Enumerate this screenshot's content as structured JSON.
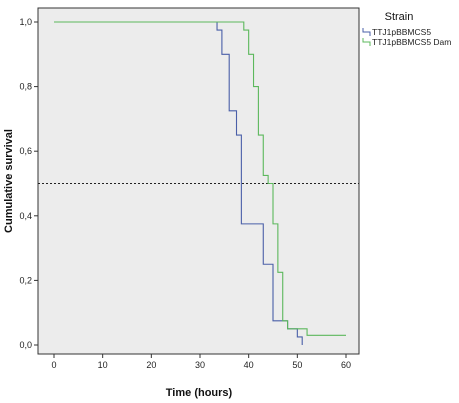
{
  "chart_data": {
    "type": "line",
    "step": true,
    "xlabel": "Time (hours)",
    "ylabel": "Cumulative survival",
    "xlim": [
      0,
      60
    ],
    "ylim": [
      0,
      1
    ],
    "x_ticks": [
      "0",
      "10",
      "20",
      "30",
      "40",
      "50",
      "60"
    ],
    "y_ticks": [
      "0,0",
      "0,2",
      "0,4",
      "0,6",
      "0,8",
      "1,0"
    ],
    "grid": false,
    "plot_background": "#ececec",
    "reference_line": {
      "y": 0.5,
      "style": "dotted"
    },
    "legend": {
      "title": "Strain",
      "placement": "right",
      "entries": [
        "TTJ1pBBMCS5",
        "TTJ1pBBMCS5 Dam"
      ]
    },
    "series": [
      {
        "name": "TTJ1pBBMCS5",
        "color": "#4a5fa8",
        "x": [
          0,
          33,
          33.5,
          34.5,
          36,
          37.5,
          38.5,
          42,
          43,
          45,
          48,
          50,
          51
        ],
        "y": [
          1.0,
          1.0,
          0.975,
          0.9,
          0.725,
          0.65,
          0.375,
          0.375,
          0.25,
          0.075,
          0.05,
          0.025,
          0.0
        ]
      },
      {
        "name": "TTJ1pBBMCS5 Dam",
        "color": "#5cb85c",
        "x": [
          0,
          37,
          39,
          40,
          41,
          42,
          43,
          44,
          45,
          46,
          47,
          48,
          51,
          52,
          60
        ],
        "y": [
          1.0,
          1.0,
          0.975,
          0.9,
          0.8,
          0.65,
          0.525,
          0.5,
          0.375,
          0.225,
          0.075,
          0.05,
          0.05,
          0.03,
          0.03
        ]
      }
    ]
  }
}
